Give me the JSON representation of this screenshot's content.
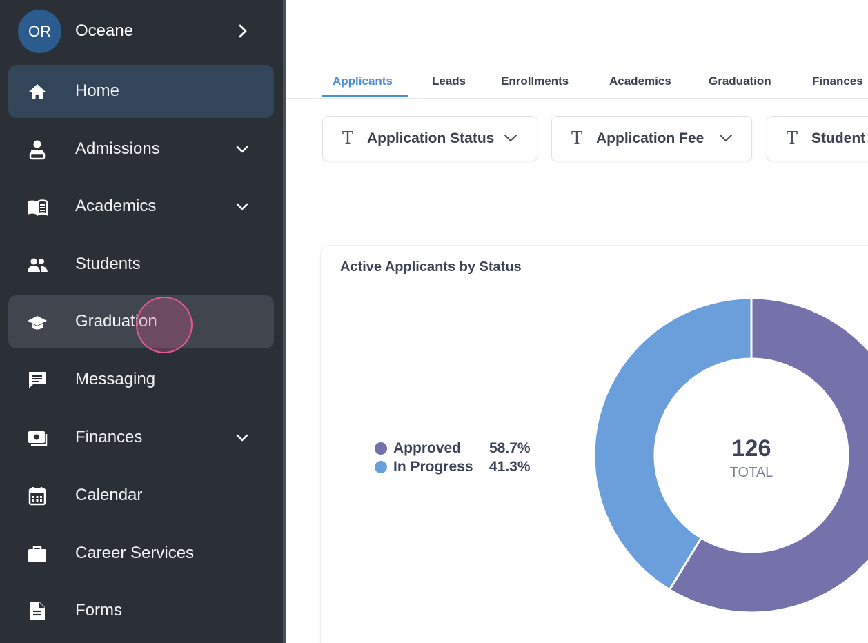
{
  "user": {
    "initials": "OR",
    "name": "Oceane"
  },
  "sidebar": {
    "items": [
      {
        "label": "Home",
        "icon": "home-icon",
        "has_chevron": false,
        "state": "active"
      },
      {
        "label": "Admissions",
        "icon": "admissions-icon",
        "has_chevron": true
      },
      {
        "label": "Academics",
        "icon": "book-icon",
        "has_chevron": true
      },
      {
        "label": "Students",
        "icon": "people-icon",
        "has_chevron": false
      },
      {
        "label": "Graduation",
        "icon": "graduation-cap-icon",
        "has_chevron": false,
        "state": "hover"
      },
      {
        "label": "Messaging",
        "icon": "message-icon",
        "has_chevron": false
      },
      {
        "label": "Finances",
        "icon": "money-icon",
        "has_chevron": true
      },
      {
        "label": "Calendar",
        "icon": "calendar-icon",
        "has_chevron": false
      },
      {
        "label": "Career Services",
        "icon": "briefcase-icon",
        "has_chevron": false
      },
      {
        "label": "Forms",
        "icon": "document-icon",
        "has_chevron": false
      }
    ]
  },
  "tabs": [
    {
      "label": "Applicants",
      "active": true
    },
    {
      "label": "Leads"
    },
    {
      "label": "Enrollments"
    },
    {
      "label": "Academics"
    },
    {
      "label": "Graduation"
    },
    {
      "label": "Finances"
    }
  ],
  "filters": [
    {
      "type_glyph": "T",
      "label": "Application Status"
    },
    {
      "type_glyph": "T",
      "label": "Application Fee"
    },
    {
      "type_glyph": "T",
      "label": "Student"
    }
  ],
  "card": {
    "title": "Active Applicants by Status",
    "legend": [
      {
        "name": "Approved",
        "pct": "58.7%",
        "color": "#7471ab"
      },
      {
        "name": "In Progress",
        "pct": "41.3%",
        "color": "#6a9fdc"
      }
    ],
    "total_value": "126",
    "total_label": "TOTAL"
  },
  "chart_data": {
    "type": "pie",
    "title": "Active Applicants by Status",
    "categories": [
      "Approved",
      "In Progress"
    ],
    "values": [
      58.7,
      41.3
    ],
    "colors": [
      "#7471ab",
      "#6a9fdc"
    ],
    "center_value": 126,
    "center_label": "TOTAL"
  },
  "colors": {
    "sidebar_bg": "#2b2f36",
    "active_item_bg": "#334559",
    "accent": "#4a90d9",
    "avatar_bg": "#2c5b8e"
  }
}
